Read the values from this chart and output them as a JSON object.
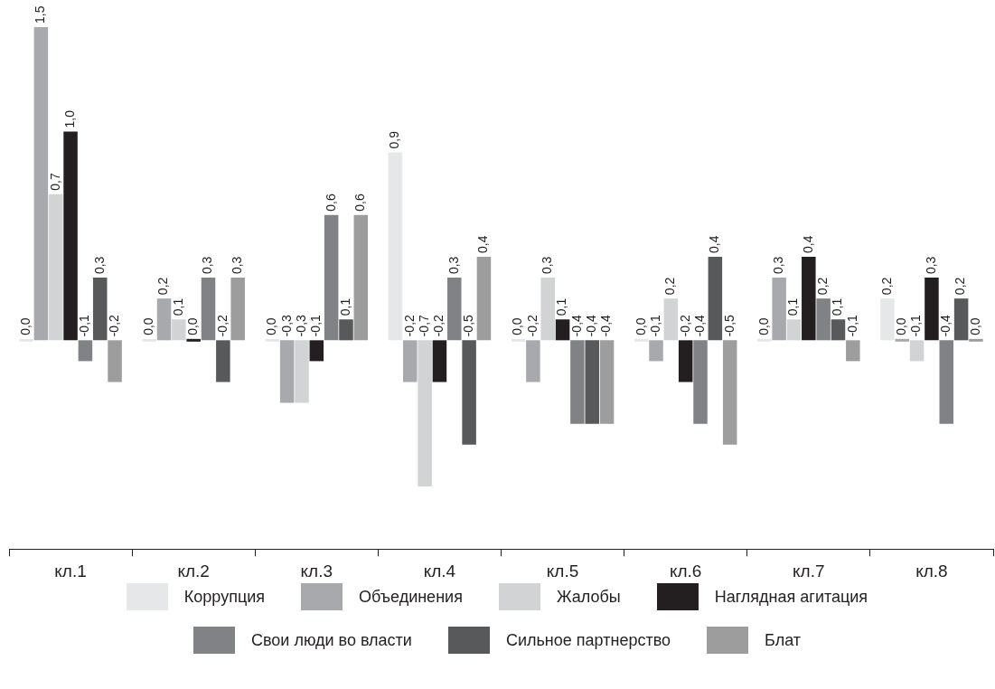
{
  "chart_data": {
    "type": "bar",
    "categories": [
      "кл.1",
      "кл.2",
      "кл.3",
      "кл.4",
      "кл.5",
      "кл.6",
      "кл.7",
      "кл.8"
    ],
    "tick_labels": "x",
    "legend": "bottom",
    "series": [
      {
        "name": "Коррупция",
        "color": "#e6e7e9",
        "values": [
          0.0,
          0.0,
          0.0,
          0.9,
          0.0,
          0.0,
          0.0,
          0.2
        ],
        "value_labels": [
          "0,0",
          "0,0",
          "0,0",
          "0,9",
          "0,0",
          "0,0",
          "0,0",
          "0,2"
        ]
      },
      {
        "name": "Объединения",
        "color": "#a7a9ac",
        "values": [
          1.5,
          0.2,
          -0.3,
          -0.2,
          -0.2,
          -0.1,
          0.3,
          0.0
        ],
        "value_labels": [
          "1,5",
          "0,2",
          "-0,3",
          "-0,2",
          "-0,2",
          "-0,1",
          "0,3",
          "0,0"
        ]
      },
      {
        "name": "Жалобы",
        "color": "#d1d3d4",
        "values": [
          0.7,
          0.1,
          -0.3,
          -0.7,
          0.3,
          0.2,
          0.1,
          -0.1
        ],
        "value_labels": [
          "0,7",
          "0,1",
          "-0,3",
          "-0,7",
          "0,3",
          "0,2",
          "0,1",
          "-0,1"
        ]
      },
      {
        "name": "Наглядная агитация",
        "color": "#231f20",
        "values": [
          1.0,
          0.0,
          -0.1,
          -0.2,
          0.1,
          -0.2,
          0.4,
          0.3
        ],
        "value_labels": [
          "1,0",
          "0,0",
          "-0,1",
          "-0,2",
          "0,1",
          "-0,2",
          "0,4",
          "0,3"
        ]
      },
      {
        "name": "Свои люди во власти",
        "color": "#808285",
        "values": [
          -0.1,
          0.3,
          0.6,
          0.3,
          -0.4,
          -0.4,
          0.2,
          -0.4
        ],
        "value_labels": [
          "-0,1",
          "0,3",
          "0,6",
          "0,3",
          "-0,4",
          "-0,4",
          "0,2",
          "-0,4"
        ]
      },
      {
        "name": "Сильное партнерство",
        "color": "#58595b",
        "values": [
          0.3,
          -0.2,
          0.1,
          -0.5,
          -0.4,
          0.4,
          0.1,
          0.2
        ],
        "value_labels": [
          "0,3",
          "-0,2",
          "0,1",
          "-0,5",
          "-0,4",
          "0,4",
          "0,1",
          "0,2"
        ]
      },
      {
        "name": "Блат",
        "color": "#9d9d9d",
        "values": [
          -0.2,
          0.3,
          0.6,
          0.4,
          -0.4,
          -0.5,
          -0.1,
          0.0
        ],
        "value_labels": [
          "-0,2",
          "0,3",
          "0,6",
          "0,4",
          "-0,4",
          "-0,5",
          "-0,1",
          "0,0"
        ]
      }
    ]
  }
}
